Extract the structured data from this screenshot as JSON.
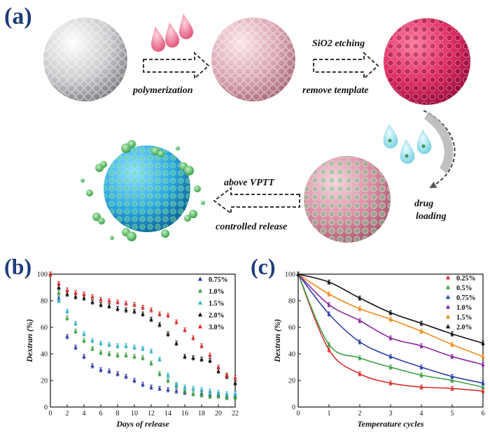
{
  "panel_labels": {
    "a": "(a)",
    "b": "(b)",
    "c": "(c)"
  },
  "schematic": {
    "polymerization": "polymerization",
    "etching": "SiO2 etching",
    "remove_template": "remove template",
    "drug": "drug",
    "loading": "loading",
    "above_vptt": "above VPTT",
    "controlled_release": "controlled release"
  },
  "chart_data": [
    {
      "type": "scatter",
      "xlabel": "Days of release",
      "ylabel": "Dextran (%)",
      "xlim": [
        0,
        22
      ],
      "ylim": [
        0,
        100
      ],
      "xticks": [
        0,
        2,
        4,
        6,
        8,
        10,
        12,
        14,
        16,
        18,
        20,
        22
      ],
      "yticks": [
        0,
        20,
        40,
        60,
        80,
        100
      ],
      "legend_position": "top-right",
      "series": [
        {
          "name": "0.75%",
          "color": "#2f3fa8",
          "marker": "triangle",
          "x": [
            0,
            1,
            2,
            3,
            4,
            5,
            6,
            7,
            8,
            9,
            10,
            11,
            12,
            13,
            14,
            15,
            16,
            17,
            18,
            19,
            20,
            21,
            22
          ],
          "y": [
            100,
            82,
            53,
            45,
            38,
            31,
            28,
            27,
            25,
            23,
            20,
            17,
            15,
            14,
            13,
            12,
            11,
            10,
            10,
            9,
            9,
            8,
            8
          ]
        },
        {
          "name": "1.0%",
          "color": "#3ea043",
          "marker": "triangle",
          "x": [
            0,
            1,
            2,
            3,
            4,
            5,
            6,
            7,
            8,
            9,
            10,
            11,
            12,
            13,
            14,
            15,
            16,
            17,
            18,
            19,
            20,
            21,
            22
          ],
          "y": [
            100,
            86,
            67,
            57,
            50,
            44,
            41,
            40,
            39,
            39,
            38,
            37,
            33,
            25,
            20,
            16,
            12,
            10,
            9,
            8,
            8,
            7,
            7
          ]
        },
        {
          "name": "1.5%",
          "color": "#35b2c8",
          "marker": "triangle",
          "x": [
            0,
            1,
            2,
            3,
            4,
            5,
            6,
            7,
            8,
            9,
            10,
            11,
            12,
            13,
            14,
            15,
            16,
            17,
            18,
            19,
            20,
            21,
            22
          ],
          "y": [
            100,
            80,
            72,
            63,
            55,
            50,
            48,
            47,
            46,
            46,
            45,
            44,
            42,
            36,
            24,
            17,
            15,
            14,
            13,
            12,
            11,
            10,
            10
          ]
        },
        {
          "name": "2.0%",
          "color": "#111111",
          "marker": "triangle",
          "x": [
            0,
            1,
            2,
            3,
            4,
            5,
            6,
            7,
            8,
            9,
            10,
            11,
            12,
            13,
            14,
            15,
            16,
            17,
            18,
            19,
            20,
            21,
            22
          ],
          "y": [
            100,
            90,
            85,
            83,
            82,
            79,
            77,
            76,
            74,
            73,
            72,
            70,
            66,
            62,
            55,
            48,
            38,
            37,
            36,
            35,
            27,
            23,
            18
          ]
        },
        {
          "name": "3.0%",
          "color": "#d8302e",
          "marker": "triangle",
          "x": [
            0,
            1,
            2,
            3,
            4,
            5,
            6,
            7,
            8,
            9,
            10,
            11,
            12,
            13,
            14,
            15,
            16,
            17,
            18,
            19,
            20,
            21,
            22
          ],
          "y": [
            100,
            93,
            88,
            86,
            85,
            83,
            81,
            80,
            79,
            78,
            77,
            75,
            73,
            70,
            69,
            64,
            58,
            52,
            46,
            39,
            30,
            24,
            22
          ]
        }
      ]
    },
    {
      "type": "line",
      "xlabel": "Temperature cycles",
      "ylabel": "Dextran (%)",
      "xlim": [
        0,
        6
      ],
      "ylim": [
        0,
        100
      ],
      "xticks": [
        0,
        1,
        2,
        3,
        4,
        5,
        6
      ],
      "yticks": [
        0,
        20,
        40,
        60,
        80,
        100
      ],
      "legend_position": "top-right",
      "series": [
        {
          "name": "0.25%",
          "color": "#d8302e",
          "marker": "triangle",
          "x": [
            0,
            1,
            2,
            3,
            4,
            5,
            6
          ],
          "y": [
            100,
            43,
            25,
            18,
            15,
            14,
            12
          ]
        },
        {
          "name": "0.5%",
          "color": "#3ea043",
          "marker": "triangle",
          "x": [
            0,
            1,
            2,
            3,
            4,
            5,
            6
          ],
          "y": [
            100,
            47,
            37,
            30,
            24,
            20,
            15
          ]
        },
        {
          "name": "0.75%",
          "color": "#2f3fa8",
          "marker": "triangle",
          "x": [
            0,
            1,
            2,
            3,
            4,
            5,
            6
          ],
          "y": [
            100,
            70,
            49,
            38,
            30,
            23,
            18
          ]
        },
        {
          "name": "1.0%",
          "color": "#8a2aa0",
          "marker": "triangle",
          "x": [
            0,
            1,
            2,
            3,
            4,
            5,
            6
          ],
          "y": [
            100,
            77,
            65,
            52,
            46,
            38,
            32
          ]
        },
        {
          "name": "1.5%",
          "color": "#f08a1c",
          "marker": "triangle",
          "x": [
            0,
            1,
            2,
            3,
            4,
            5,
            6
          ],
          "y": [
            100,
            85,
            74,
            66,
            57,
            47,
            38
          ]
        },
        {
          "name": "2.0%",
          "color": "#111111",
          "marker": "triangle",
          "x": [
            0,
            1,
            2,
            3,
            4,
            5,
            6
          ],
          "y": [
            100,
            94,
            82,
            71,
            63,
            55,
            48
          ]
        }
      ]
    }
  ]
}
